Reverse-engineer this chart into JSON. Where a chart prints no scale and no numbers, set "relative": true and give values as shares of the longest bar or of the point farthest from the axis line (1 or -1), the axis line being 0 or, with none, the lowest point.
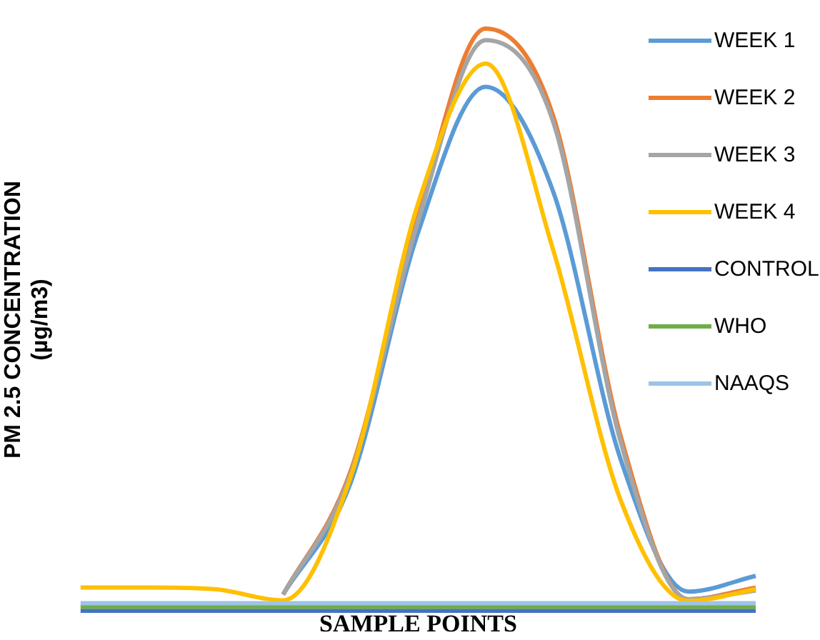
{
  "chart_data": {
    "type": "line",
    "relative": true,
    "ylabel": "PM 2.5 CONCENTRATION\n(µg/m3)",
    "xlabel": "SAMPLE POINTS",
    "categories": [
      null,
      null,
      null,
      null,
      null,
      null,
      null,
      null,
      null,
      null,
      null
    ],
    "grid": false,
    "legend": "right",
    "marker": "none",
    "series": [
      {
        "name": "WEEK 1",
        "color": "#5b9bd5",
        "values": [
          null,
          null,
          null,
          0.028,
          0.22,
          0.65,
          0.9,
          0.72,
          0.26,
          0.033,
          0.06
        ]
      },
      {
        "name": "WEEK 2",
        "color": "#ed7d31",
        "values": [
          null,
          null,
          null,
          0.028,
          0.24,
          0.68,
          1,
          0.85,
          0.3,
          0.02,
          0.04
        ]
      },
      {
        "name": "WEEK 3",
        "color": "#a5a5a5",
        "values": [
          null,
          null,
          null,
          0.028,
          0.235,
          0.67,
          0.98,
          0.84,
          0.29,
          0.02,
          0.035
        ]
      },
      {
        "name": "WEEK 4",
        "color": "#ffc000",
        "values": [
          0.04,
          0.04,
          0.037,
          0.018,
          0.23,
          0.7,
          0.94,
          0.62,
          0.19,
          0.017,
          0.037
        ]
      },
      {
        "name": "CONTROL",
        "color": "#4472c4",
        "values": [
          0,
          0,
          0,
          0,
          0,
          0,
          0,
          0,
          0,
          0,
          0
        ]
      },
      {
        "name": "WHO",
        "color": "#70ad47",
        "values": [
          0.007,
          0.007,
          0.007,
          0.007,
          0.007,
          0.007,
          0.007,
          0.007,
          0.007,
          0.007,
          0.007
        ]
      },
      {
        "name": "NAAQS",
        "color": "#9dc3e6",
        "values": [
          0.013,
          0.013,
          0.013,
          0.013,
          0.013,
          0.013,
          0.013,
          0.013,
          0.013,
          0.013,
          0.013
        ]
      }
    ]
  }
}
